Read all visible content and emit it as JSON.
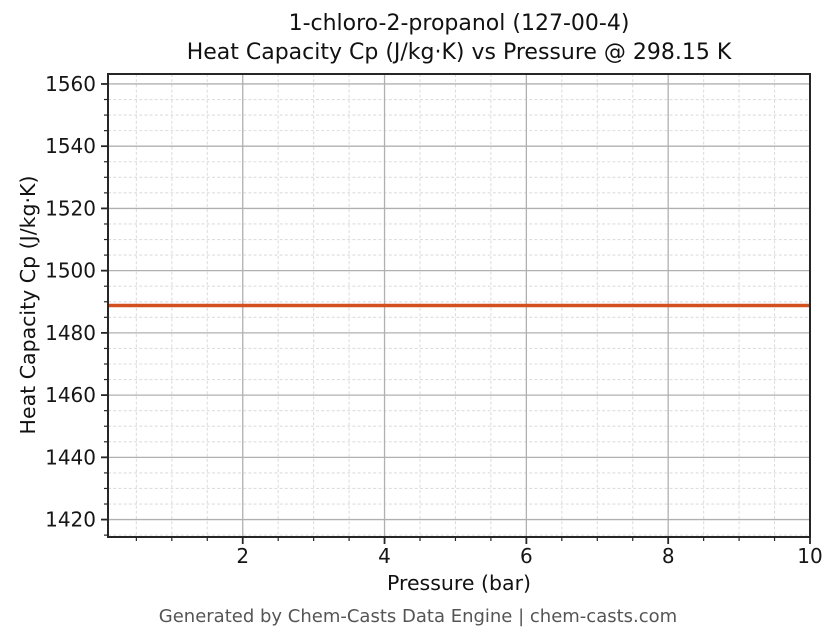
{
  "page": {
    "background": "#ffffff",
    "footer": "Generated by Chem-Casts Data Engine | chem-casts.com"
  },
  "chart_data": {
    "type": "line",
    "title": "1-chloro-2-propanol (127-00-4)",
    "subtitle": "Heat Capacity Cp (J/kg·K) vs Pressure @ 298.15 K",
    "xlabel": "Pressure (bar)",
    "ylabel": "Heat Capacity Cp (J/kg·K)",
    "xlim": [
      0.1,
      10
    ],
    "ylim": [
      1414.4,
      1563.2
    ],
    "x_major_ticks": [
      2,
      4,
      6,
      8,
      10
    ],
    "x_minor_step": 0.5,
    "y_major_ticks": [
      1420,
      1440,
      1460,
      1480,
      1500,
      1520,
      1540,
      1560
    ],
    "y_minor_step": 5,
    "grid": {
      "major": true,
      "minor": true
    },
    "legend": "none",
    "colors": {
      "line": "#d2501e",
      "grid_major": "#b0b0b0",
      "grid_minor": "#dedede",
      "spine": "#262626",
      "tick_label": "#161616",
      "footer_text": "#555555"
    },
    "series": [
      {
        "name": "Heat Capacity Cp",
        "x": [
          0.1,
          1,
          2,
          3,
          4,
          5,
          6,
          7,
          8,
          9,
          10
        ],
        "y": [
          1488.8,
          1488.8,
          1488.8,
          1488.8,
          1488.8,
          1488.8,
          1488.8,
          1488.8,
          1488.8,
          1488.8,
          1488.8
        ]
      }
    ]
  }
}
